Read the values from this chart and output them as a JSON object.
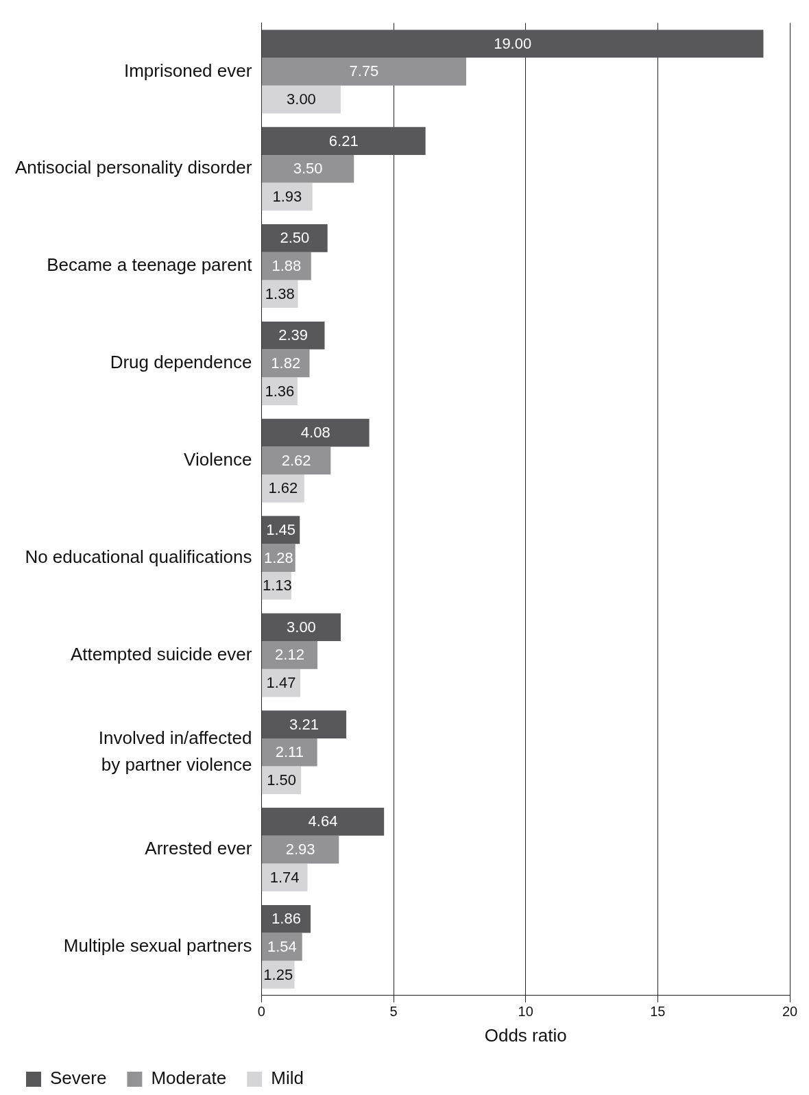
{
  "chart_data": {
    "type": "bar",
    "orientation": "horizontal",
    "xlabel": "Odds ratio",
    "categories": [
      "Imprisoned ever",
      "Antisocial personality disorder",
      "Became a teenage parent",
      "Drug dependence",
      "Violence",
      "No educational qualifications",
      "Attempted suicide ever",
      "Involved in/affected by partner violence",
      "Arrested ever",
      "Multiple sexual partners"
    ],
    "series": [
      {
        "name": "Severe",
        "color": "#58585a",
        "values": [
          19.0,
          6.21,
          2.5,
          2.39,
          4.08,
          1.45,
          3.0,
          3.21,
          4.64,
          1.86
        ],
        "value_labels": [
          "19.00",
          "6.21",
          "2.50",
          "2.39",
          "4.08",
          "1.45",
          "3.00",
          "3.21",
          "4.64",
          "1.86"
        ]
      },
      {
        "name": "Moderate",
        "color": "#939395",
        "values": [
          7.75,
          3.5,
          1.88,
          1.82,
          2.62,
          1.28,
          2.12,
          2.11,
          2.93,
          1.54
        ],
        "value_labels": [
          "7.75",
          "3.50",
          "1.88",
          "1.82",
          "2.62",
          "1.28",
          "2.12",
          "2.11",
          "2.93",
          "1.54"
        ]
      },
      {
        "name": "Mild",
        "color": "#d5d5d7",
        "values": [
          3.0,
          1.93,
          1.38,
          1.36,
          1.62,
          1.13,
          1.47,
          1.5,
          1.74,
          1.25
        ],
        "value_labels": [
          "3.00",
          "1.93",
          "1.38",
          "1.36",
          "1.62",
          "1.13",
          "1.47",
          "1.50",
          "1.74",
          "1.25"
        ]
      }
    ],
    "xlim": [
      0,
      20
    ],
    "xticks": [
      0,
      5,
      10,
      15,
      20
    ],
    "grid": "x",
    "legend": "bottom left"
  }
}
